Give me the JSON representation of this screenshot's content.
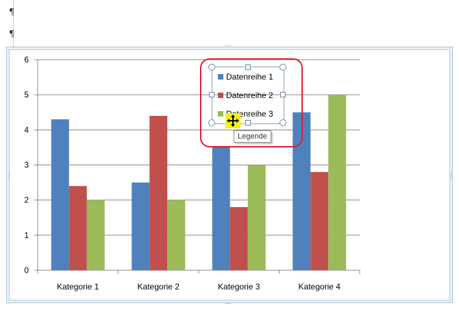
{
  "document": {
    "paragraph_mark": "¶"
  },
  "chart_data": {
    "type": "bar",
    "categories": [
      "Kategorie 1",
      "Kategorie 2",
      "Kategorie 3",
      "Kategorie 4"
    ],
    "series": [
      {
        "name": "Datenreihe 1",
        "color": "#4f81bd",
        "values": [
          4.3,
          2.5,
          3.5,
          4.5
        ]
      },
      {
        "name": "Datenreihe 2",
        "color": "#c0504d",
        "values": [
          2.4,
          4.4,
          1.8,
          2.8
        ]
      },
      {
        "name": "Datenreihe 3",
        "color": "#9bbb59",
        "values": [
          2,
          2,
          3,
          5
        ]
      }
    ],
    "yticks": [
      "0",
      "1",
      "2",
      "3",
      "4",
      "5",
      "6"
    ],
    "ylim": [
      0,
      6
    ],
    "grid": true,
    "legend": "top-right"
  },
  "selection": {
    "tooltip": "Legende",
    "highlight_color": "#e01b2a"
  },
  "icons": {
    "move_cursor": "move-cursor-icon",
    "frame_handle": "resize-handle-icon"
  }
}
